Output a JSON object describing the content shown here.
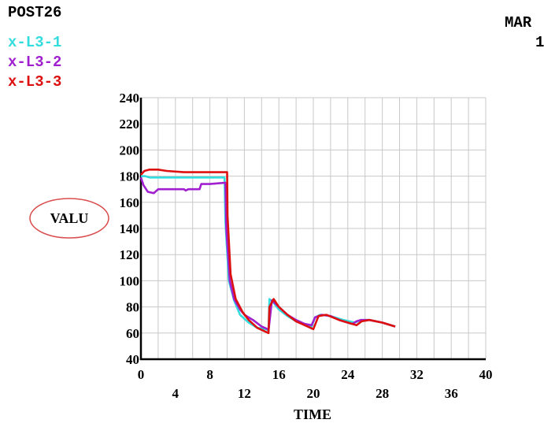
{
  "header": {
    "title": "POST26",
    "corner_line1": "MAR",
    "corner_line2": "1"
  },
  "colors": {
    "grid": "#c8c8c8",
    "axis": "#000000",
    "ylabel_ellipse": "#d94a4a"
  },
  "chart_data": {
    "type": "line",
    "xlabel": "TIME",
    "ylabel": "VALU",
    "xlim": [
      0,
      40
    ],
    "ylim": [
      40,
      240
    ],
    "grid": true,
    "legend_position": "top-left",
    "x_ticks_top": [
      "0",
      "8",
      "16",
      "24",
      "32",
      "40"
    ],
    "x_ticks_bottom": [
      "4",
      "12",
      "20",
      "28",
      "36"
    ],
    "y_ticks": [
      "40",
      "60",
      "80",
      "100",
      "120",
      "140",
      "160",
      "180",
      "200",
      "220",
      "240"
    ],
    "series": [
      {
        "name": "x-L3-1",
        "color": "#33dddd",
        "x": [
          0,
          0.5,
          1,
          2,
          4,
          6,
          8,
          9.7,
          9.8,
          10.2,
          10.8,
          11.5,
          12.5,
          13.5,
          14.5,
          14.8,
          14.9,
          15.3,
          16,
          17,
          18,
          19,
          19.8,
          20.2,
          20.8,
          22,
          23.5,
          24.8,
          25.5,
          26.5,
          28,
          29.5
        ],
        "y": [
          180,
          180,
          179,
          179,
          179,
          179,
          179,
          179,
          145,
          100,
          85,
          74,
          68,
          64,
          63,
          62,
          86,
          84,
          78,
          73,
          69,
          67,
          65,
          72,
          74,
          73,
          70,
          68,
          70,
          70,
          68,
          65
        ]
      },
      {
        "name": "x-L3-2",
        "color": "#a020d0",
        "x": [
          0,
          0.3,
          0.8,
          1.5,
          2,
          3,
          4,
          5,
          5.2,
          5.5,
          6,
          6.8,
          7,
          8,
          9.8,
          9.9,
          10.3,
          10.8,
          11.5,
          12,
          13,
          14,
          14.7,
          14.8,
          15.2,
          16,
          17,
          18,
          19,
          19.8,
          20.2,
          21,
          22,
          23,
          24.5,
          25,
          25.5,
          26.5,
          28,
          29.5
        ],
        "y": [
          179,
          173,
          168,
          167,
          170,
          170,
          170,
          170,
          169,
          170,
          170,
          170,
          174,
          174,
          175,
          140,
          100,
          86,
          78,
          74,
          70,
          65,
          63,
          62,
          85,
          80,
          74,
          70,
          67,
          66,
          72,
          74,
          73,
          70,
          67,
          69,
          70,
          70,
          68,
          65
        ]
      },
      {
        "name": "x-L3-3",
        "color": "#dd1010",
        "x": [
          0,
          0.4,
          1,
          2,
          3,
          5,
          8,
          10,
          10.05,
          10.4,
          11,
          11.8,
          12.5,
          13.5,
          14.8,
          14.9,
          15.4,
          16,
          17,
          18,
          19,
          20,
          20.6,
          21.5,
          23,
          25,
          25.6,
          26.5,
          28,
          29.5
        ],
        "y": [
          181,
          184,
          185,
          185,
          184,
          183,
          183,
          183,
          150,
          105,
          86,
          76,
          70,
          64,
          60,
          80,
          86,
          80,
          74,
          69,
          66,
          63,
          73,
          74,
          70,
          66,
          69,
          70,
          68,
          65
        ]
      }
    ]
  }
}
